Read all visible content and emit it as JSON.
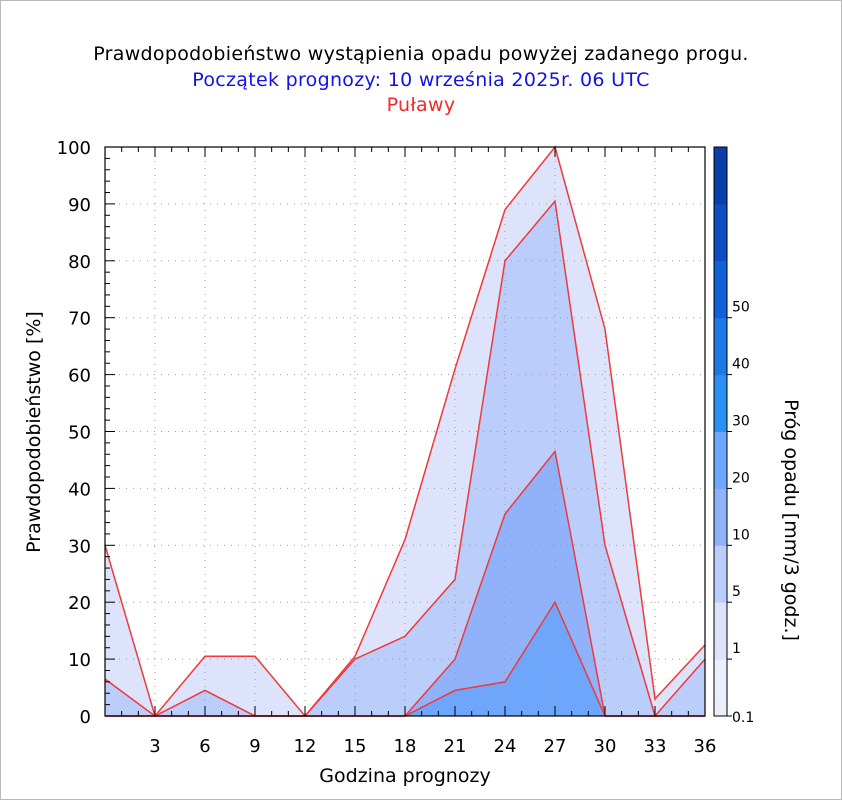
{
  "title": "Prawdopodobieństwo wystąpienia opadu powyżej zadanego progu.",
  "subtitle": "Początek prognozy: 10 września 2025r. 06 UTC",
  "location": "Puławy",
  "colors": {
    "line": "#ee3a3a",
    "title": "#000000",
    "subtitle": "#1212e6",
    "location": "#ee2a2a",
    "grid": "#9a9a9a"
  },
  "chart_data": {
    "type": "area",
    "xlabel": "Godzina prognozy",
    "ylabel": "Prawdopodobieństwo [%]",
    "colorbar_label": "Próg opadu [mm/3 godz.]",
    "xlim": [
      0,
      36
    ],
    "ylim": [
      0,
      100
    ],
    "x": [
      0,
      3,
      6,
      9,
      12,
      15,
      18,
      21,
      24,
      27,
      30,
      33,
      36
    ],
    "x_tick_labels": [
      "3",
      "6",
      "9",
      "12",
      "15",
      "18",
      "21",
      "24",
      "27",
      "30",
      "33",
      "36"
    ],
    "y_tick_labels": [
      "0",
      "10",
      "20",
      "30",
      "40",
      "50",
      "60",
      "70",
      "80",
      "90",
      "100"
    ],
    "grid": true,
    "series": [
      {
        "threshold": "0.1",
        "color": "#dde3fb",
        "values": [
          30,
          0,
          10.5,
          10.5,
          0,
          10.5,
          31,
          61,
          89,
          100,
          68,
          3,
          12.5
        ]
      },
      {
        "threshold": "1",
        "color": "#bbcdfb",
        "values": [
          6.5,
          0,
          4.5,
          0,
          0,
          10,
          14,
          24,
          80,
          90.5,
          30,
          0,
          10
        ]
      },
      {
        "threshold": "5",
        "color": "#8fb2fb",
        "values": [
          0,
          0,
          0,
          0,
          0,
          0,
          0,
          10,
          35.5,
          46.5,
          0,
          0,
          0
        ]
      },
      {
        "threshold": "10",
        "color": "#6ea6fb",
        "values": [
          0,
          0,
          0,
          0,
          0,
          0,
          0,
          4.5,
          6,
          20,
          0,
          0,
          0
        ]
      }
    ],
    "colorbar": {
      "tick_labels": [
        "0.1",
        "1",
        "5",
        "10",
        "20",
        "30",
        "40",
        "50"
      ],
      "colors": [
        "#eceffd",
        "#dde3fb",
        "#bbcdfb",
        "#8fb2fb",
        "#6ea6fb",
        "#2c8ff2",
        "#1c79e6",
        "#1161d8",
        "#0c4fc4",
        "#0a3ea8"
      ]
    }
  }
}
